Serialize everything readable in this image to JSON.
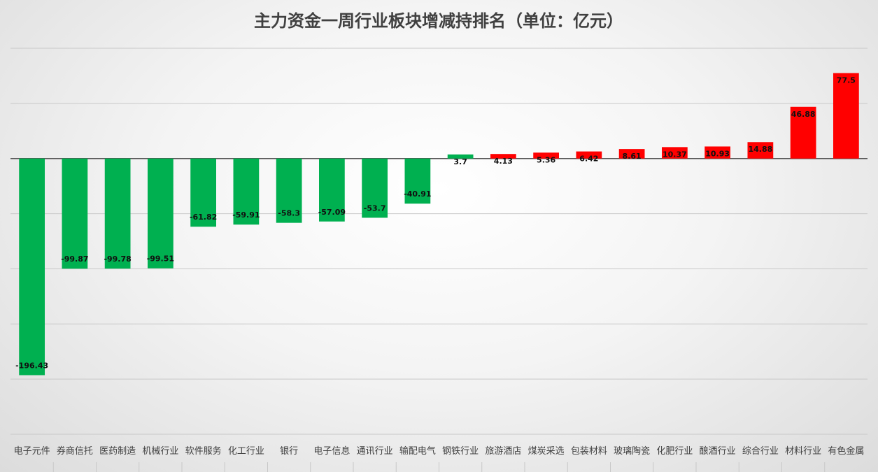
{
  "chart_data": {
    "type": "bar",
    "title": "主力资金一周行业板块增减持排名（单位：亿元）",
    "categories": [
      "电子元件",
      "券商信托",
      "医药制造",
      "机械行业",
      "软件服务",
      "化工行业",
      "银行",
      "电子信息",
      "通讯行业",
      "输配电气",
      "钢铁行业",
      "旅游酒店",
      "煤炭采选",
      "包装材料",
      "玻璃陶瓷",
      "化肥行业",
      "酿酒行业",
      "综合行业",
      "材料行业",
      "有色金属"
    ],
    "values": [
      -196.43,
      -99.87,
      -99.78,
      -99.51,
      -61.82,
      -59.91,
      -58.3,
      -57.09,
      -53.7,
      -40.91,
      3.7,
      4.13,
      5.36,
      6.42,
      8.61,
      10.37,
      10.93,
      14.88,
      46.88,
      77.5
    ],
    "data_labels": [
      "-196.43",
      "-99.87",
      "-99.78",
      "-99.51",
      "-61.82",
      "-59.91",
      "-58.3",
      "-57.09",
      "-53.7",
      "-40.91",
      "3.7",
      "4.13",
      "5.36",
      "6.42",
      "8.61",
      "10.37",
      "10.93",
      "14.88",
      "46.88",
      "77.5"
    ],
    "ylim": [
      -250,
      100
    ],
    "grid": true,
    "legend": "none",
    "colors": {
      "negative": "#00b050",
      "positive_small": "#00b050",
      "positive": "#ff0000"
    }
  }
}
